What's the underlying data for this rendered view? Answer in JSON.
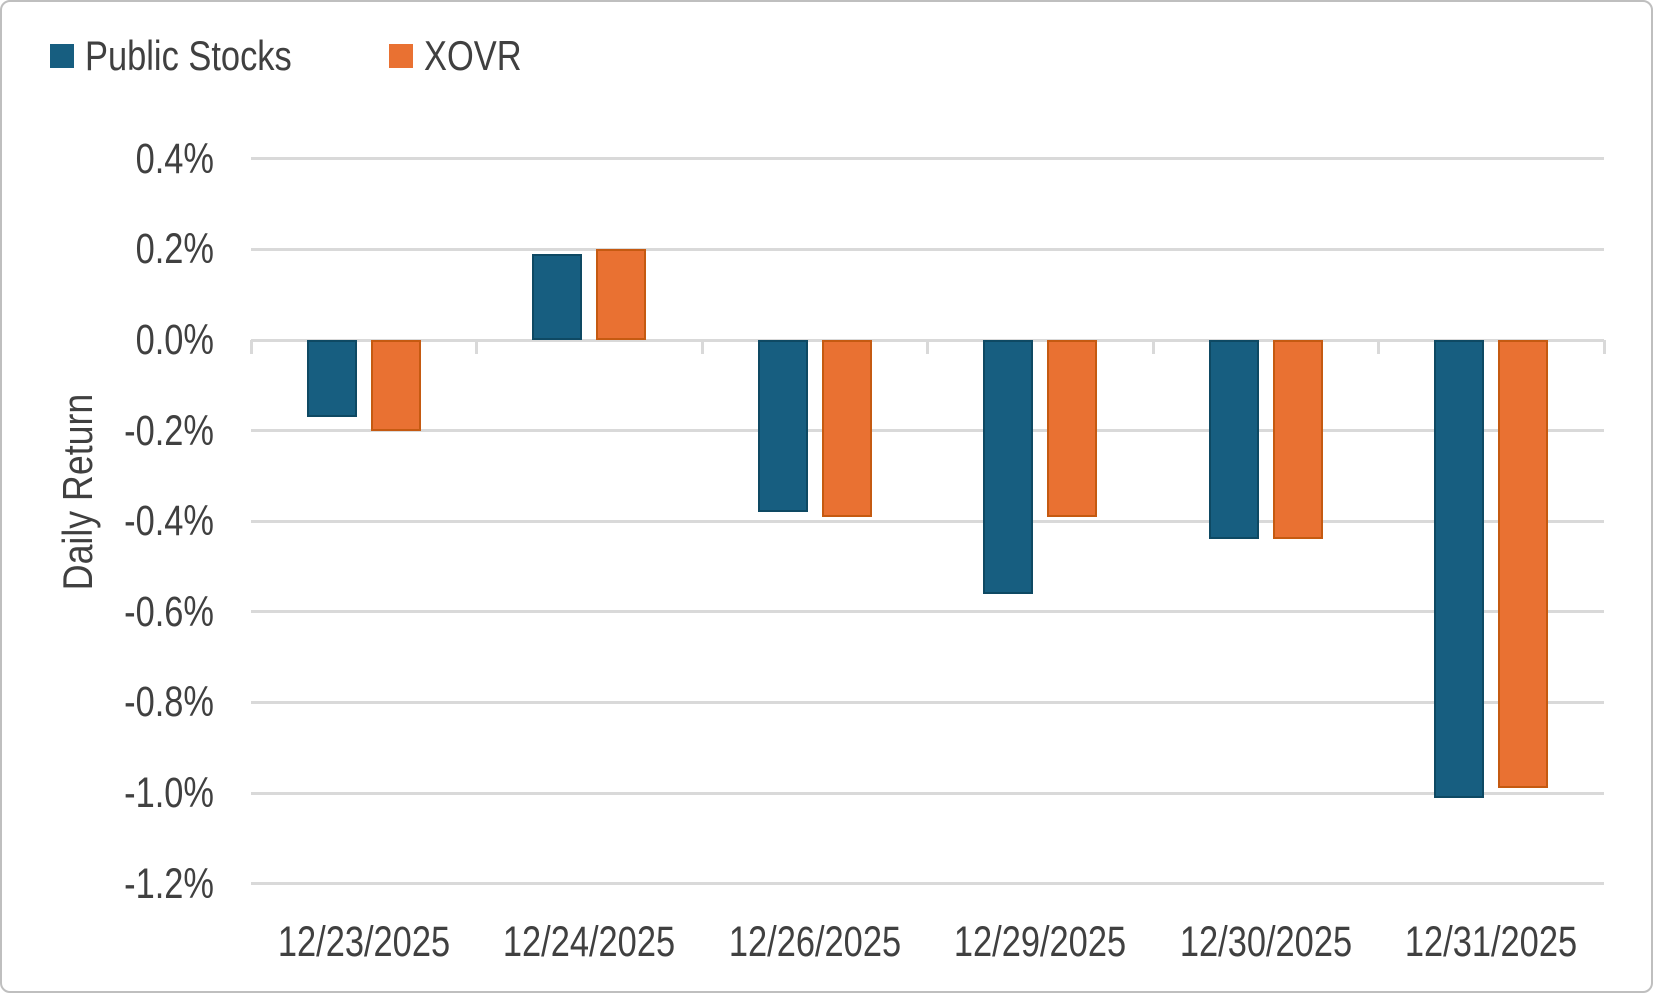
{
  "legend": {
    "items": [
      {
        "label": "Public Stocks",
        "color": "#175E80"
      },
      {
        "label": "XOVR",
        "color": "#E97132"
      }
    ]
  },
  "ylabel": "Daily Return",
  "chart_data": {
    "type": "bar",
    "title": "",
    "xlabel": "",
    "ylabel": "Daily Return",
    "categories": [
      "12/23/2025",
      "12/24/2025",
      "12/26/2025",
      "12/29/2025",
      "12/30/2025",
      "12/31/2025"
    ],
    "series": [
      {
        "name": "Public Stocks",
        "color": "#175E80",
        "border_color": "#0E4963",
        "values": [
          -0.17,
          0.19,
          -0.38,
          -0.56,
          -0.44,
          -1.01
        ]
      },
      {
        "name": "XOVR",
        "color": "#E97132",
        "border_color": "#C55A11",
        "values": [
          -0.2,
          0.2,
          -0.39,
          -0.39,
          -0.44,
          -0.99
        ]
      }
    ],
    "value_unit": "percent",
    "ylim": [
      -1.2,
      0.4
    ],
    "ytick_step": 0.2,
    "ytick_labels": [
      "0.4%",
      "0.2%",
      "0.0%",
      "-0.2%",
      "-0.4%",
      "-0.6%",
      "-0.8%",
      "-1.0%",
      "-1.2%"
    ],
    "grid": "horizontal",
    "legend_position": "top-left",
    "colors": {
      "text": "#404040",
      "gridline": "#D9D9D9",
      "panel_border": "#BFBFBF"
    }
  }
}
